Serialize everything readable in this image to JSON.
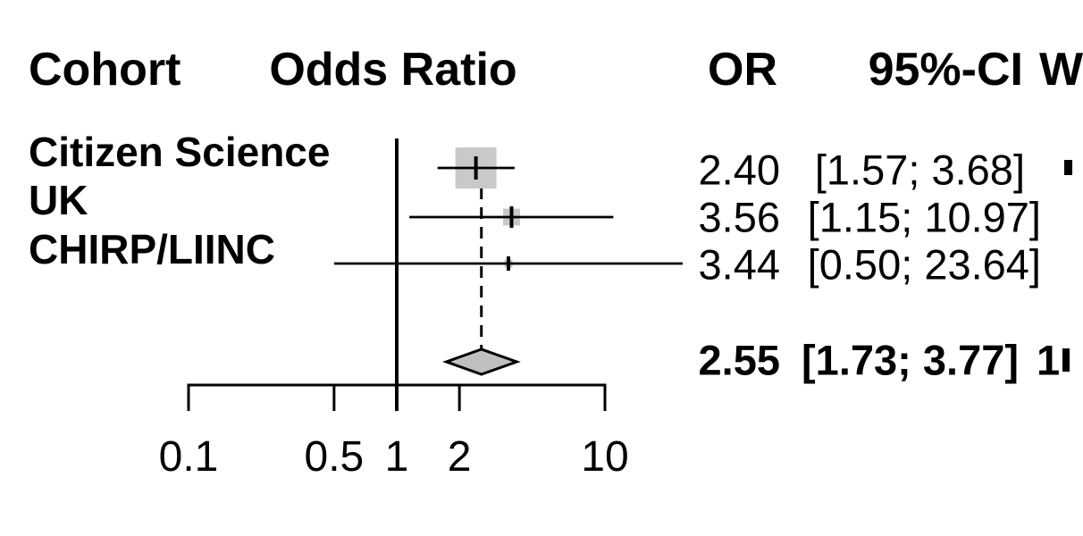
{
  "header": {
    "cohort": "Cohort",
    "effect_measure": "Odds Ratio",
    "or": "OR",
    "ci": "95%-CI",
    "weight_visible": "W"
  },
  "colors": {
    "square_fill": "#c9c9c9",
    "diamond_fill": "#c0c0c0",
    "line": "#000000",
    "text": "#000000",
    "background": "#ffffff"
  },
  "chart_data": {
    "type": "forest",
    "x_scale": "log",
    "x_axis_tick_values": [
      0.1,
      0.5,
      1,
      2,
      10
    ],
    "x_axis_tick_labels": [
      "0.1",
      "0.5",
      "1",
      "2",
      "10"
    ],
    "reference_line_value": 1,
    "dashed_line_value": 2.55,
    "weight_column_clipped": true,
    "studies": [
      {
        "label": "Citizen Science",
        "or": 2.4,
        "ci_low": 1.57,
        "ci_high": 3.68,
        "or_text": "2.40",
        "ci_text": "[1.57; 3.68]",
        "weight_partially_visible": true
      },
      {
        "label": "UK",
        "or": 3.56,
        "ci_low": 1.15,
        "ci_high": 10.97,
        "or_text": "3.56",
        "ci_text": "[1.15; 10.97]",
        "weight_partially_visible": false
      },
      {
        "label": "CHIRP/LIINC",
        "or": 3.44,
        "ci_low": 0.5,
        "ci_high": 23.64,
        "or_text": "3.44",
        "ci_text": "[0.50; 23.64]",
        "weight_partially_visible": false
      }
    ],
    "pooled": {
      "or": 2.55,
      "ci_low": 1.73,
      "ci_high": 3.77,
      "or_text": "2.55",
      "ci_text": "[1.73; 3.77]",
      "weight_visible": "1",
      "weight_partially_visible": true
    }
  }
}
